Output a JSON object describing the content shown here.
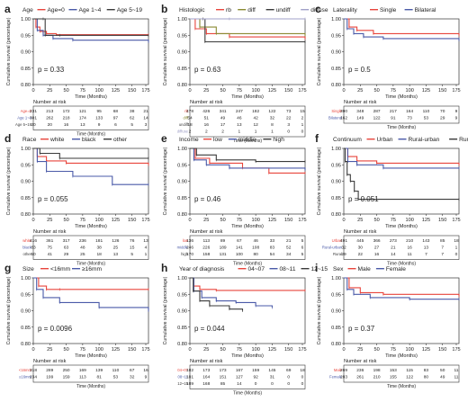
{
  "figure": {
    "y_tick_labels": [
      "0.80",
      "0.85",
      "0.90",
      "0.95",
      "1.00"
    ],
    "x_tick_labels": [
      "0",
      "25",
      "50",
      "75",
      "100",
      "125",
      "150",
      "175"
    ],
    "ylabel": "Cumulative survival (percentage)",
    "xlabel": "Time (Months)",
    "risk_title": "Number at risk"
  },
  "chart_data": [
    {
      "type": "line",
      "panel": "a",
      "legend_title": "Age",
      "xlim": [
        0,
        175
      ],
      "ylim": [
        0.8,
        1.0
      ],
      "pvalue": "p = 0.33",
      "series": [
        {
          "name": "Age=0",
          "color": "#e8453c",
          "points": [
            [
              0,
              1
            ],
            [
              4,
              0.975
            ],
            [
              10,
              0.962
            ],
            [
              20,
              0.955
            ],
            [
              35,
              0.952
            ],
            [
              175,
              0.952
            ]
          ]
        },
        {
          "name": "Age 1~4",
          "color": "#4a5aa8",
          "points": [
            [
              0,
              1
            ],
            [
              6,
              0.965
            ],
            [
              15,
              0.95
            ],
            [
              30,
              0.94
            ],
            [
              60,
              0.935
            ],
            [
              175,
              0.93
            ]
          ]
        },
        {
          "name": "Age 5~19",
          "color": "#3a3a3a",
          "points": [
            [
              0,
              1
            ],
            [
              15,
              1
            ],
            [
              18,
              0.95
            ],
            [
              40,
              0.95
            ],
            [
              175,
              0.95
            ]
          ]
        }
      ],
      "risk": [
        {
          "name": "Age=0",
          "values": [
            "231",
            "213",
            "172",
            "121",
            "95",
            "68",
            "38",
            "21"
          ]
        },
        {
          "name": "Age 1~4",
          "values": [
            "301",
            "262",
            "218",
            "174",
            "133",
            "97",
            "62",
            "14"
          ]
        },
        {
          "name": "Age 5~19",
          "values": [
            "20",
            "20",
            "16",
            "13",
            "9",
            "6",
            "5",
            "3"
          ]
        }
      ]
    },
    {
      "type": "line",
      "panel": "b",
      "legend_title": "Histologic",
      "xlim": [
        0,
        175
      ],
      "ylim": [
        0.8,
        1.0
      ],
      "pvalue": "p = 0.63",
      "series": [
        {
          "name": "rb",
          "color": "#e8453c",
          "points": [
            [
              0,
              1
            ],
            [
              8,
              0.97
            ],
            [
              25,
              0.955
            ],
            [
              60,
              0.945
            ],
            [
              175,
              0.94
            ]
          ]
        },
        {
          "name": "diff",
          "color": "#8a8a32",
          "points": [
            [
              0,
              1
            ],
            [
              15,
              0.975
            ],
            [
              40,
              0.955
            ],
            [
              175,
              0.95
            ]
          ]
        },
        {
          "name": "undiff",
          "color": "#3a3a3a",
          "points": [
            [
              0,
              1
            ],
            [
              20,
              1
            ],
            [
              23,
              0.93
            ],
            [
              175,
              0.93
            ]
          ]
        },
        {
          "name": "diffuse",
          "color": "#a0a0c8",
          "points": [
            [
              0,
              1
            ],
            [
              60,
              1
            ],
            [
              175,
              1
            ]
          ]
        }
      ],
      "risk": [
        {
          "name": "rb",
          "values": [
            "478",
            "426",
            "341",
            "247",
            "182",
            "122",
            "73",
            "15"
          ]
        },
        {
          "name": "diff",
          "values": [
            "54",
            "51",
            "49",
            "46",
            "42",
            "32",
            "22",
            "2"
          ]
        },
        {
          "name": "undiff",
          "values": [
            "18",
            "16",
            "17",
            "13",
            "12",
            "8",
            "3",
            "1"
          ]
        },
        {
          "name": "diffuse",
          "values": [
            "2",
            "2",
            "2",
            "1",
            "1",
            "1",
            "0",
            "0"
          ]
        }
      ]
    },
    {
      "type": "line",
      "panel": "c",
      "legend_title": "Laterality",
      "xlim": [
        0,
        175
      ],
      "ylim": [
        0.8,
        1.0
      ],
      "pvalue": "p = 0.5",
      "series": [
        {
          "name": "Single",
          "color": "#e8453c",
          "points": [
            [
              0,
              1
            ],
            [
              8,
              0.975
            ],
            [
              20,
              0.965
            ],
            [
              45,
              0.955
            ],
            [
              175,
              0.95
            ]
          ]
        },
        {
          "name": "Bilateral",
          "color": "#4a5aa8",
          "points": [
            [
              0,
              1
            ],
            [
              5,
              0.97
            ],
            [
              15,
              0.955
            ],
            [
              30,
              0.945
            ],
            [
              60,
              0.94
            ],
            [
              175,
              0.935
            ]
          ]
        }
      ],
      "risk": [
        {
          "name": "Single",
          "values": [
            "390",
            "348",
            "287",
            "217",
            "164",
            "110",
            "70",
            "9"
          ]
        },
        {
          "name": "Bilateral",
          "values": [
            "162",
            "149",
            "122",
            "91",
            "73",
            "53",
            "29",
            "9"
          ]
        }
      ]
    },
    {
      "type": "line",
      "panel": "d",
      "legend_title": "Race",
      "xlim": [
        0,
        175
      ],
      "ylim": [
        0.8,
        1.0
      ],
      "pvalue": "p = 0.055",
      "series": [
        {
          "name": "white",
          "color": "#e8453c",
          "points": [
            [
              0,
              1
            ],
            [
              6,
              0.975
            ],
            [
              20,
              0.962
            ],
            [
              50,
              0.955
            ],
            [
              175,
              0.95
            ]
          ]
        },
        {
          "name": "black",
          "color": "#4a5aa8",
          "points": [
            [
              0,
              1
            ],
            [
              6,
              0.96
            ],
            [
              20,
              0.93
            ],
            [
              60,
              0.915
            ],
            [
              120,
              0.89
            ],
            [
              175,
              0.89
            ]
          ]
        },
        {
          "name": "other",
          "color": "#3a3a3a",
          "points": [
            [
              0,
              1
            ],
            [
              10,
              0.985
            ],
            [
              40,
              0.97
            ],
            [
              175,
              0.97
            ]
          ]
        }
      ],
      "risk": [
        {
          "name": "white",
          "values": [
            "416",
            "361",
            "317",
            "236",
            "181",
            "126",
            "76",
            "13"
          ]
        },
        {
          "name": "black",
          "values": [
            "83",
            "75",
            "63",
            "48",
            "38",
            "25",
            "15",
            "4"
          ]
        },
        {
          "name": "other",
          "values": [
            "50",
            "41",
            "29",
            "25",
            "18",
            "13",
            "5",
            "1"
          ]
        }
      ]
    },
    {
      "type": "line",
      "panel": "e",
      "legend_title": "Income",
      "xlim": [
        0,
        175
      ],
      "ylim": [
        0.8,
        1.0
      ],
      "pvalue": "p = 0.46",
      "series": [
        {
          "name": "low",
          "color": "#e8453c",
          "points": [
            [
              0,
              1
            ],
            [
              8,
              0.97
            ],
            [
              30,
              0.955
            ],
            [
              80,
              0.94
            ],
            [
              120,
              0.925
            ],
            [
              175,
              0.925
            ]
          ]
        },
        {
          "name": "middle",
          "color": "#4a5aa8",
          "points": [
            [
              0,
              1
            ],
            [
              6,
              0.965
            ],
            [
              25,
              0.95
            ],
            [
              60,
              0.94
            ],
            [
              175,
              0.935
            ]
          ]
        },
        {
          "name": "high",
          "color": "#3a3a3a",
          "points": [
            [
              0,
              1
            ],
            [
              10,
              0.98
            ],
            [
              40,
              0.965
            ],
            [
              100,
              0.96
            ],
            [
              175,
              0.96
            ]
          ]
        }
      ],
      "risk": [
        {
          "name": "low",
          "values": [
            "136",
            "113",
            "89",
            "67",
            "46",
            "33",
            "21",
            "5"
          ]
        },
        {
          "name": "middle",
          "values": [
            "246",
            "226",
            "189",
            "141",
            "108",
            "83",
            "52",
            "6"
          ]
        },
        {
          "name": "high",
          "values": [
            "170",
            "158",
            "131",
            "100",
            "80",
            "54",
            "34",
            "5"
          ]
        }
      ]
    },
    {
      "type": "line",
      "panel": "f",
      "legend_title": "Continuum",
      "xlim": [
        0,
        175
      ],
      "ylim": [
        0.8,
        1.0
      ],
      "pvalue": "p = 0.051",
      "series": [
        {
          "name": "Urban",
          "color": "#e8453c",
          "points": [
            [
              0,
              1
            ],
            [
              6,
              0.975
            ],
            [
              20,
              0.962
            ],
            [
              50,
              0.955
            ],
            [
              175,
              0.95
            ]
          ]
        },
        {
          "name": "Rural-urban",
          "color": "#4a5aa8",
          "points": [
            [
              0,
              1
            ],
            [
              6,
              0.96
            ],
            [
              20,
              0.95
            ],
            [
              60,
              0.94
            ],
            [
              175,
              0.94
            ]
          ]
        },
        {
          "name": "Rural",
          "color": "#3a3a3a",
          "points": [
            [
              0,
              1
            ],
            [
              2,
              0.96
            ],
            [
              5,
              0.92
            ],
            [
              10,
              0.9
            ],
            [
              16,
              0.87
            ],
            [
              22,
              0.845
            ],
            [
              175,
              0.845
            ]
          ]
        }
      ],
      "risk": [
        {
          "name": "Urban",
          "values": [
            "491",
            "445",
            "366",
            "273",
            "210",
            "143",
            "85",
            "18"
          ]
        },
        {
          "name": "Rural-urban",
          "values": [
            "32",
            "30",
            "27",
            "21",
            "16",
            "13",
            "7",
            "1"
          ]
        },
        {
          "name": "Rural",
          "values": [
            "29",
            "22",
            "16",
            "14",
            "11",
            "7",
            "7",
            "0"
          ]
        }
      ]
    },
    {
      "type": "line",
      "panel": "g",
      "legend_title": "Size",
      "xlim": [
        0,
        175
      ],
      "ylim": [
        0.8,
        1.0
      ],
      "pvalue": "p = 0.0096",
      "series": [
        {
          "name": "<16mm",
          "color": "#e8453c",
          "points": [
            [
              0,
              1
            ],
            [
              8,
              0.975
            ],
            [
              20,
              0.965
            ],
            [
              40,
              0.965
            ],
            [
              175,
              0.965
            ]
          ]
        },
        {
          "name": "≥16mm",
          "color": "#4a5aa8",
          "points": [
            [
              0,
              1
            ],
            [
              5,
              0.965
            ],
            [
              15,
              0.94
            ],
            [
              40,
              0.925
            ],
            [
              100,
              0.91
            ],
            [
              175,
              0.9
            ]
          ]
        }
      ],
      "risk": [
        {
          "name": "<16mm",
          "values": [
            "318",
            "289",
            "250",
            "169",
            "139",
            "110",
            "67",
            "16"
          ]
        },
        {
          "name": "≥16mm",
          "values": [
            "234",
            "199",
            "159",
            "113",
            "81",
            "53",
            "32",
            "9"
          ]
        }
      ]
    },
    {
      "type": "line",
      "panel": "h",
      "legend_title": "Year of diagnosis",
      "xlim": [
        0,
        175
      ],
      "ylim": [
        0.8,
        1.0
      ],
      "pvalue": "p = 0.044",
      "series": [
        {
          "name": "04~07",
          "color": "#e8453c",
          "points": [
            [
              0,
              1
            ],
            [
              6,
              0.975
            ],
            [
              15,
              0.965
            ],
            [
              40,
              0.962
            ],
            [
              175,
              0.962
            ]
          ]
        },
        {
          "name": "08~11",
          "color": "#4a5aa8",
          "points": [
            [
              0,
              1
            ],
            [
              6,
              0.96
            ],
            [
              18,
              0.94
            ],
            [
              40,
              0.93
            ],
            [
              70,
              0.925
            ],
            [
              100,
              0.915
            ],
            [
              125,
              0.91
            ]
          ]
        },
        {
          "name": "12~15",
          "color": "#3a3a3a",
          "points": [
            [
              0,
              1
            ],
            [
              5,
              0.96
            ],
            [
              15,
              0.93
            ],
            [
              30,
              0.915
            ],
            [
              60,
              0.905
            ],
            [
              80,
              0.9
            ]
          ]
        }
      ],
      "risk": [
        {
          "name": "04~07",
          "values": [
            "182",
            "173",
            "173",
            "167",
            "159",
            "145",
            "69",
            "18"
          ]
        },
        {
          "name": "08~11",
          "values": [
            "181",
            "164",
            "151",
            "127",
            "92",
            "31",
            "0",
            "0"
          ]
        },
        {
          "name": "12~15",
          "values": [
            "189",
            "168",
            "85",
            "14",
            "0",
            "0",
            "0",
            "0"
          ]
        }
      ]
    },
    {
      "type": "line",
      "panel": "i",
      "legend_title": "Sex",
      "xlim": [
        0,
        175
      ],
      "ylim": [
        0.8,
        1.0
      ],
      "pvalue": "p = 0.37",
      "series": [
        {
          "name": "Male",
          "color": "#e8453c",
          "points": [
            [
              0,
              1
            ],
            [
              8,
              0.97
            ],
            [
              25,
              0.955
            ],
            [
              60,
              0.95
            ],
            [
              175,
              0.945
            ]
          ]
        },
        {
          "name": "Female",
          "color": "#4a5aa8",
          "points": [
            [
              0,
              1
            ],
            [
              5,
              0.965
            ],
            [
              15,
              0.95
            ],
            [
              40,
              0.94
            ],
            [
              100,
              0.935
            ],
            [
              175,
              0.935
            ]
          ]
        }
      ],
      "risk": [
        {
          "name": "Male",
          "values": [
            "269",
            "236",
            "198",
            "153",
            "115",
            "83",
            "50",
            "11"
          ]
        },
        {
          "name": "Female",
          "values": [
            "283",
            "261",
            "210",
            "155",
            "122",
            "80",
            "49",
            "11"
          ]
        }
      ]
    }
  ]
}
